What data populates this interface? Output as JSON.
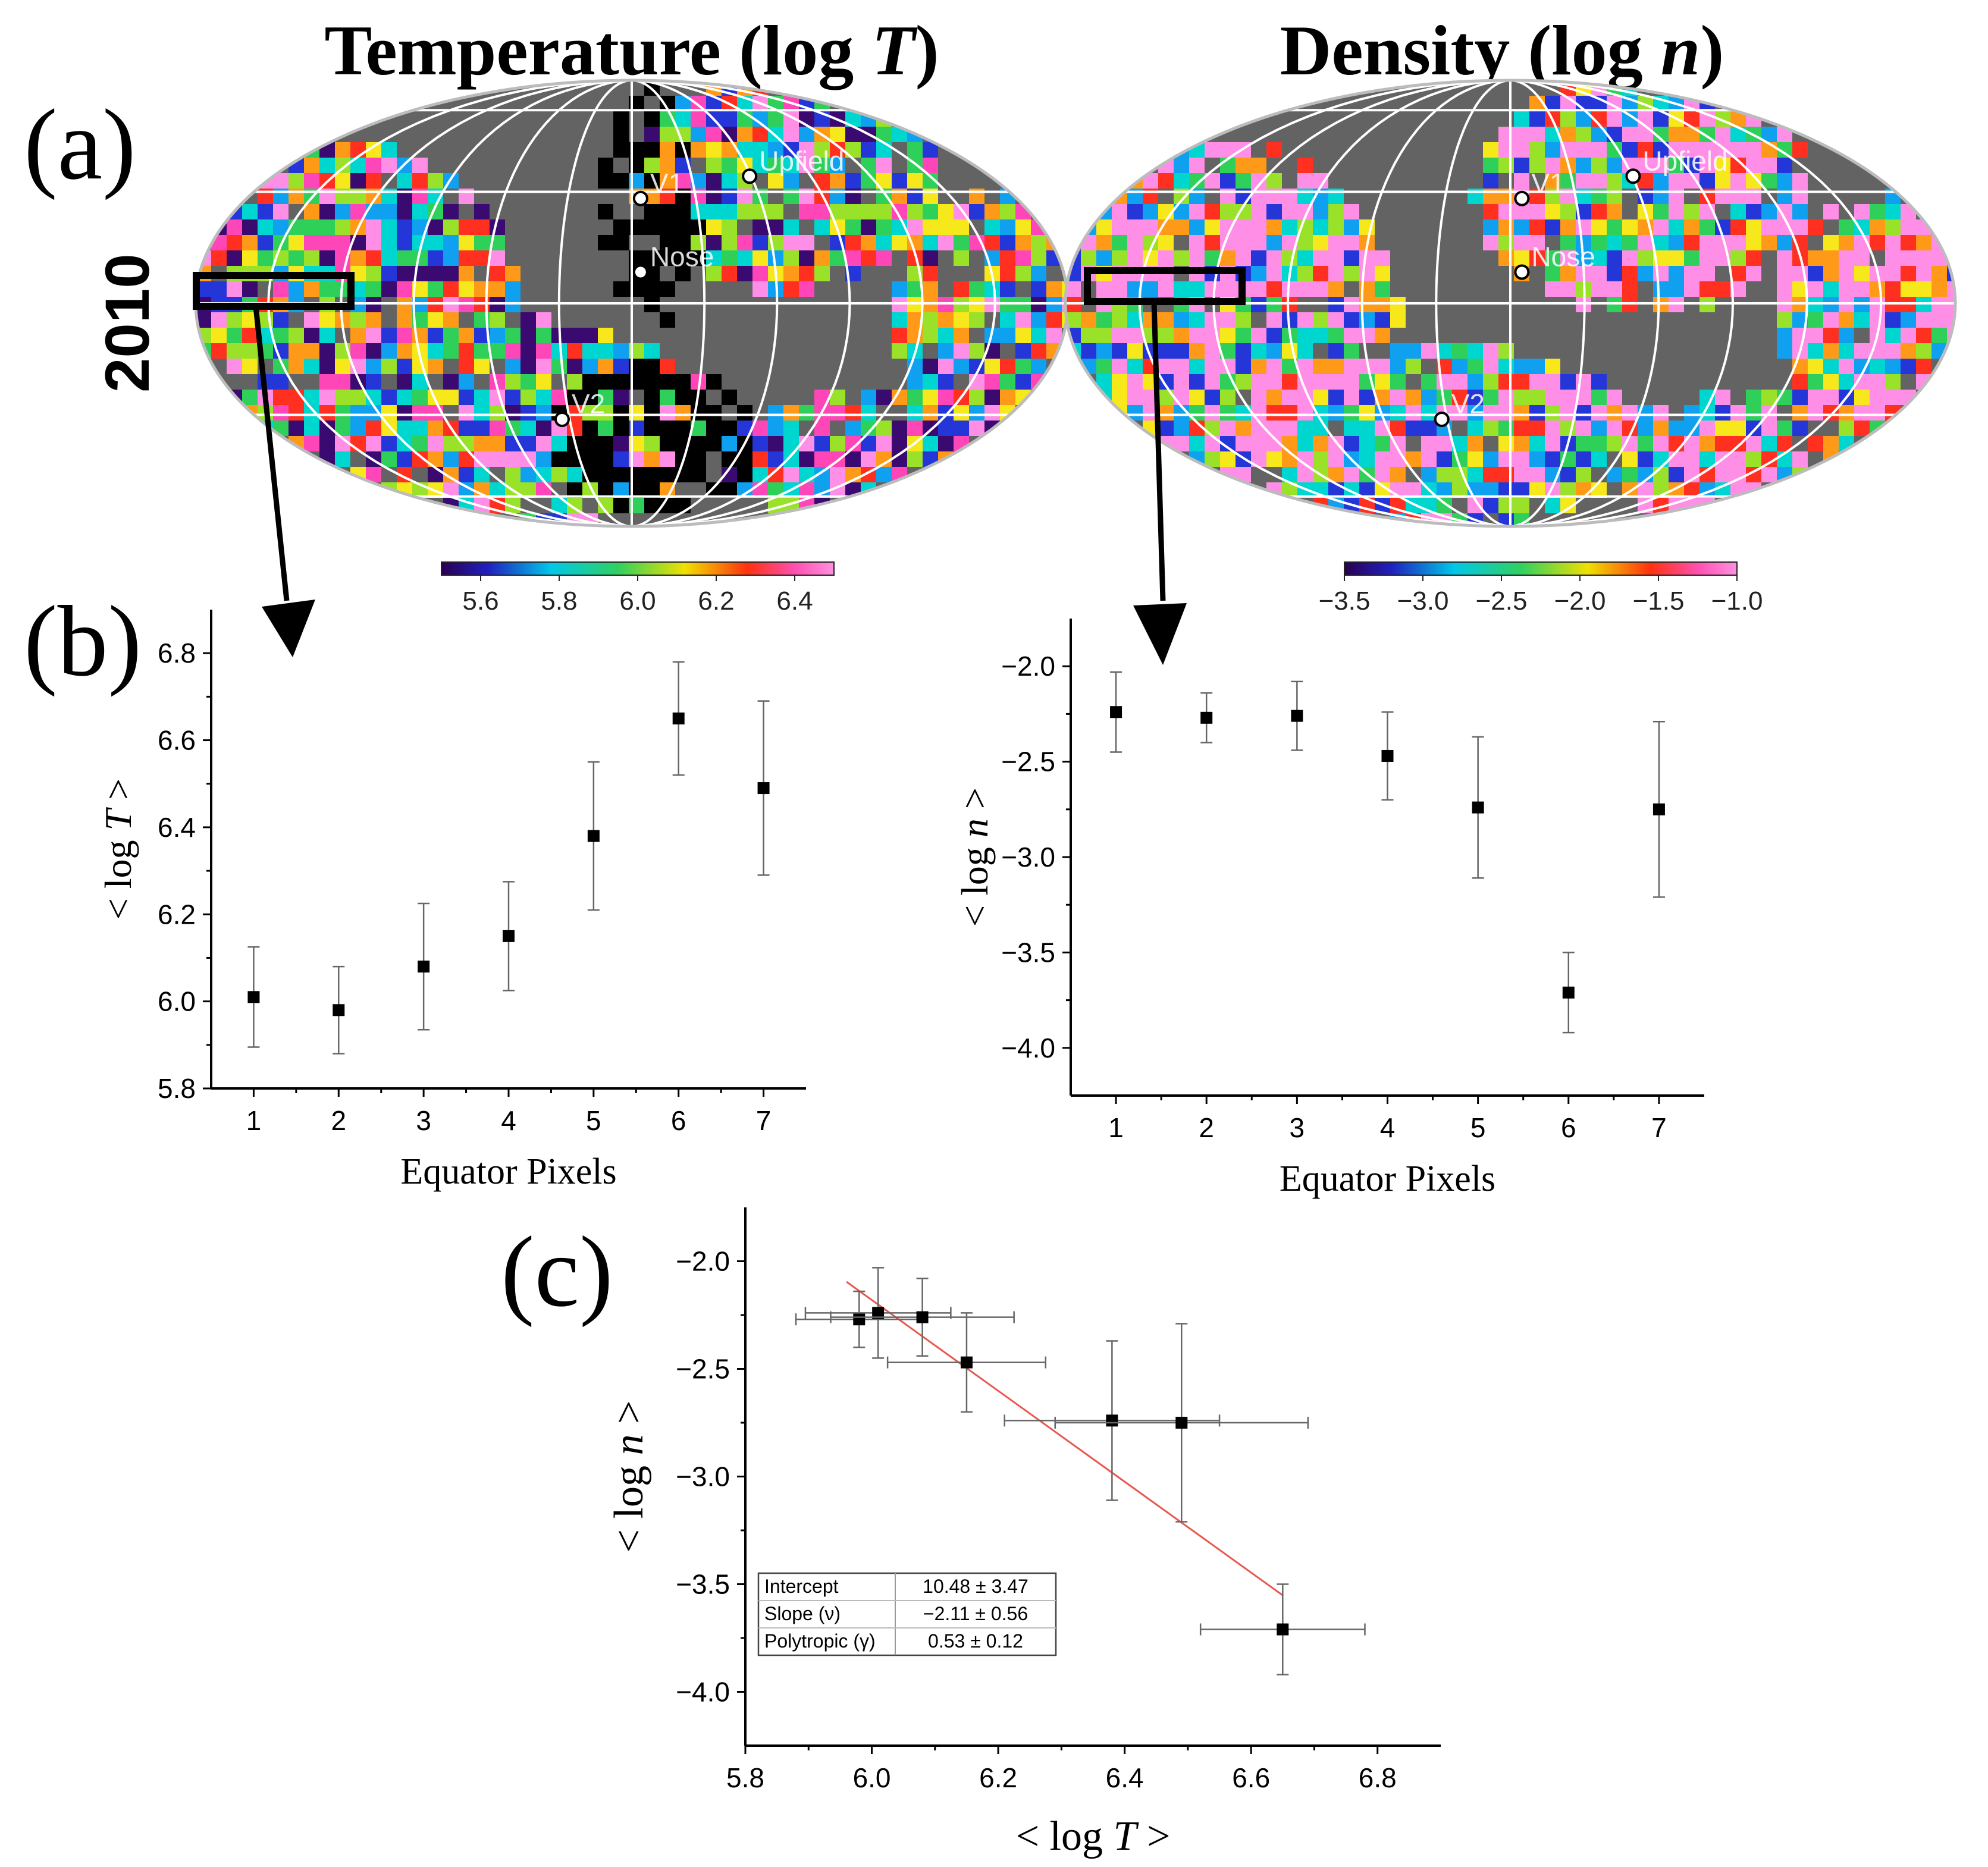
{
  "figure": {
    "panel_a_label": "(a)",
    "panel_b_label": "(b)",
    "panel_c_label": "(c)",
    "year_label": "2010",
    "map_temperature": {
      "title_prefix": "Temperature (log ",
      "title_italic": "T",
      "title_suffix": ")",
      "markers": [
        "V1",
        "Upfield",
        "Nose",
        "V2"
      ],
      "colorbar_ticks": [
        "5.6",
        "5.8",
        "6.0",
        "6.2",
        "6.4"
      ]
    },
    "map_density": {
      "title_prefix": "Density (log ",
      "title_italic": "n",
      "title_suffix": ")",
      "markers": [
        "V1",
        "Upfield",
        "Nose",
        "V2"
      ],
      "colorbar_ticks": [
        "−3.5",
        "−3.0",
        "−2.5",
        "−2.0",
        "−1.5",
        "−1.0"
      ]
    },
    "fit_table": {
      "rows": [
        {
          "label": "Intercept",
          "value": "10.48 ± 3.47"
        },
        {
          "label": "Slope (ν)",
          "value": "−2.11 ± 0.56"
        },
        {
          "label": "Polytropic (γ)",
          "value": "0.53 ± 0.12"
        }
      ]
    },
    "colors": {
      "map_bg": "#636363",
      "grid": "#ffffff",
      "fit_line": "#e8584f",
      "marker": "#000000"
    }
  },
  "chart_data": [
    {
      "id": "b-left",
      "type": "scatter",
      "title": "",
      "xlabel": "Equator Pixels",
      "ylabel_prefix": "< log ",
      "ylabel_italic": "T",
      "ylabel_suffix": " >",
      "x": [
        1,
        2,
        3,
        4,
        5,
        6,
        7
      ],
      "y": [
        6.01,
        5.98,
        6.08,
        6.15,
        6.38,
        6.65,
        6.49
      ],
      "yerr": [
        0.115,
        0.1,
        0.145,
        0.125,
        0.17,
        0.13,
        0.2
      ],
      "xlim": [
        0.5,
        7.5
      ],
      "ylim": [
        5.8,
        6.9
      ],
      "xticks": [
        1,
        2,
        3,
        4,
        5,
        6,
        7
      ],
      "xtick_labels": [
        "1",
        "2",
        "3",
        "4",
        "5",
        "6",
        "7"
      ],
      "yticks": [
        5.8,
        6.0,
        6.2,
        6.4,
        6.6,
        6.8
      ],
      "ytick_labels": [
        "5.8",
        "6.0",
        "6.2",
        "6.4",
        "6.6",
        "6.8"
      ]
    },
    {
      "id": "b-right",
      "type": "scatter",
      "title": "",
      "xlabel": "Equator Pixels",
      "ylabel_prefix": "< log ",
      "ylabel_italic": "n",
      "ylabel_suffix": " >",
      "x": [
        1,
        2,
        3,
        4,
        5,
        6,
        7
      ],
      "y": [
        -2.24,
        -2.27,
        -2.26,
        -2.47,
        -2.74,
        -3.71,
        -2.75
      ],
      "yerr": [
        0.21,
        0.13,
        0.18,
        0.23,
        0.37,
        0.21,
        0.46
      ],
      "xlim": [
        0.5,
        7.5
      ],
      "ylim": [
        -4.25,
        -1.75
      ],
      "xticks": [
        1,
        2,
        3,
        4,
        5,
        6,
        7
      ],
      "xtick_labels": [
        "1",
        "2",
        "3",
        "4",
        "5",
        "6",
        "7"
      ],
      "yticks": [
        -4.0,
        -3.5,
        -3.0,
        -2.5,
        -2.0
      ],
      "ytick_labels": [
        "-4.0",
        "-3.5",
        "-3.0",
        "-2.5",
        "-2.0"
      ]
    },
    {
      "id": "c",
      "type": "scatter",
      "title": "",
      "xlabel_prefix": "< log ",
      "xlabel_italic": "T",
      "xlabel_suffix": " >",
      "ylabel_prefix": "< log ",
      "ylabel_italic": "n",
      "ylabel_suffix": " >",
      "x": [
        5.98,
        6.01,
        6.08,
        6.15,
        6.38,
        6.49,
        6.65
      ],
      "y": [
        -2.27,
        -2.24,
        -2.26,
        -2.47,
        -2.74,
        -2.75,
        -3.71
      ],
      "xerr": [
        0.1,
        0.115,
        0.145,
        0.125,
        0.17,
        0.2,
        0.13
      ],
      "yerr": [
        0.13,
        0.21,
        0.18,
        0.23,
        0.37,
        0.46,
        0.21
      ],
      "fit": {
        "x0": 5.96,
        "x1": 6.65,
        "intercept": 10.48,
        "slope": -2.11
      },
      "xlim": [
        5.8,
        6.9
      ],
      "ylim": [
        -4.25,
        -1.75
      ],
      "xticks": [
        5.8,
        6.0,
        6.2,
        6.4,
        6.6,
        6.8
      ],
      "xtick_labels": [
        "5.8",
        "6.0",
        "6.2",
        "6.4",
        "6.6",
        "6.8"
      ],
      "yticks": [
        -4.0,
        -3.5,
        -3.0,
        -2.5,
        -2.0
      ],
      "ytick_labels": [
        "-4.0",
        "-3.5",
        "-3.0",
        "-2.5",
        "-2.0"
      ]
    }
  ]
}
